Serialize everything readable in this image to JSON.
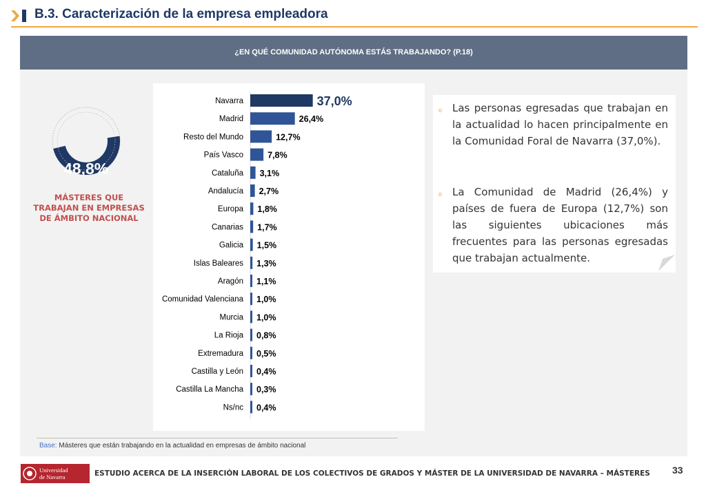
{
  "header": {
    "title": "B.3. Caracterización de la empresa empleadora",
    "accent": "#f0a742",
    "title_color": "#1f3864"
  },
  "question": "¿EN QUÉ COMUNIDAD AUTÓNOMA ESTÁS TRABAJANDO? (P.18)",
  "donut": {
    "value": "48,8%",
    "fraction": 0.488,
    "caption": "MÁSTERES QUE TRABAJAN EN EMPRESAS DE ÁMBITO NACIONAL",
    "color": "#1f3864"
  },
  "chart_data": {
    "type": "bar",
    "orientation": "horizontal",
    "categories": [
      "Navarra",
      "Madrid",
      "Resto del Mundo",
      "País Vasco",
      "Cataluña",
      "Andalucía",
      "Europa",
      "Canarias",
      "Galicia",
      "Islas Baleares",
      "Aragón",
      "Comunidad Valenciana",
      "Murcia",
      "La Rioja",
      "Extremadura",
      "Castilla y León",
      "Castilla La Mancha",
      "Ns/nc"
    ],
    "values": [
      37.0,
      26.4,
      12.7,
      7.8,
      3.1,
      2.7,
      1.8,
      1.7,
      1.5,
      1.3,
      1.1,
      1.0,
      1.0,
      0.8,
      0.5,
      0.4,
      0.3,
      0.4
    ],
    "labels": [
      "37,0%",
      "26,4%",
      "12,7%",
      "7,8%",
      "3,1%",
      "2,7%",
      "1,8%",
      "1,7%",
      "1,5%",
      "1,3%",
      "1,1%",
      "1,0%",
      "1,0%",
      "0,8%",
      "0,5%",
      "0,4%",
      "0,3%",
      "0,4%"
    ],
    "bar_color": "#2f5597",
    "highlight_color": "#1f3864"
  },
  "text": {
    "para1": "Las personas egresadas que trabajan en la actualidad lo hacen principalmente en la Comunidad Foral de Navarra (37,0%).",
    "para2": "La Comunidad de Madrid (26,4%) y países de fuera de Europa (12,7%) son las siguientes ubicaciones más frecuentes para las personas egresadas que trabajan actualmente.",
    "bullet": "o"
  },
  "base": {
    "label": "Base:",
    "text": "Másteres que están trabajando en la actualidad en empresas de ámbito nacional"
  },
  "footer": {
    "logo_text": "Universidad de Navarra",
    "text": "ESTUDIO ACERCA DE LA INSERCIÓN LABORAL DE LOS COLECTIVOS DE GRADOS Y MÁSTER DE LA UNIVERSIDAD DE NAVARRA – MÁSTERES",
    "page": "33"
  }
}
